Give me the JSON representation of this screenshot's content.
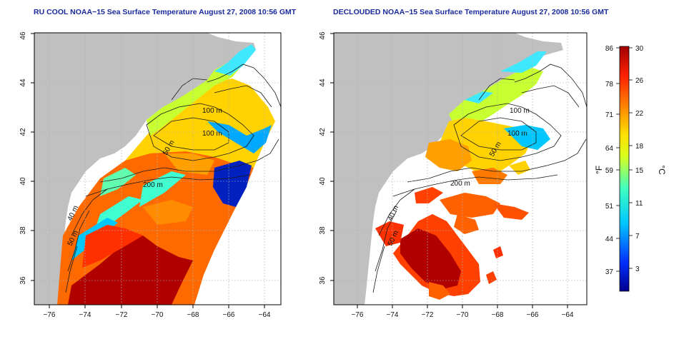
{
  "titles": {
    "left": "RU COOL NOAA−15 Sea Surface Temperature August 27, 2008 10:56 GMT",
    "right": "DECLOUDED NOAA−15 Sea Surface Temperature August 27, 2008 10:56 GMT"
  },
  "axes": {
    "x_ticks": [
      "−76",
      "−74",
      "−72",
      "−70",
      "−68",
      "−66",
      "−64"
    ],
    "y_ticks": [
      "36",
      "38",
      "40",
      "42",
      "44",
      "46"
    ]
  },
  "depth_labels": {
    "a": "100 m",
    "b": "100 m",
    "c": "50 m",
    "d": "200 m",
    "e": "40 m",
    "f": "50 m"
  },
  "colorbar": {
    "f_ticks": [
      "86",
      "78",
      "71",
      "64",
      "59",
      "51",
      "44",
      "37"
    ],
    "c_ticks": [
      "30",
      "26",
      "22",
      "18",
      "15",
      "11",
      "7",
      "3"
    ],
    "f_unit": "°F",
    "c_unit": "°C"
  },
  "colors": {
    "land": "#c0c0c0",
    "title": "#1a2a9c",
    "cold": "#00008f",
    "cool": "#00d8ff",
    "mid": "#f0f000",
    "warm": "#ff6000",
    "hot": "#a00000"
  }
}
